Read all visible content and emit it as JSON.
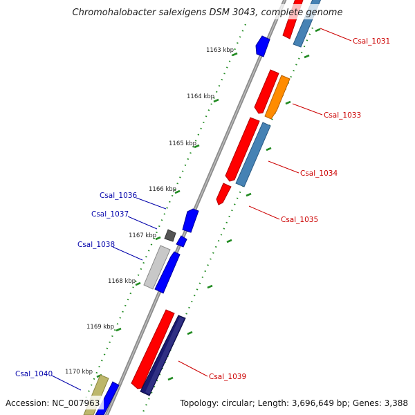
{
  "title": "Chromohalobacter salexigens DSM 3043, complete genome",
  "footer": {
    "accession": "Accession: NC_007963",
    "summary": "Topology: circular; Length: 3,696,649 bp; Genes: 3,388"
  },
  "kbp_labels": [
    "1163 kbp",
    "1164 kbp",
    "1165 kbp",
    "1166 kbp",
    "1167 kbp",
    "1168 kbp",
    "1169 kbp",
    "1170 kbp"
  ],
  "gene_labels": {
    "csal_1031": "Csal_1031",
    "csal_1033": "Csal_1033",
    "csal_1034": "Csal_1034",
    "csal_1035": "Csal_1035",
    "csal_1036": "Csal_1036",
    "csal_1037": "Csal_1037",
    "csal_1038": "Csal_1038",
    "csal_1039": "Csal_1039",
    "csal_1040": "Csal_1040"
  },
  "colors": {
    "forward_label": "#cc0000",
    "reverse_label": "#0000aa",
    "red_gene": "#ff0000",
    "blue_gene": "#0000ff",
    "steelblue_gene": "#4682b4",
    "orange_gene": "#ff8c00",
    "navy_gene": "#191970",
    "gray_gene": "#c8c8c8",
    "darkgray_gene": "#555555",
    "khaki_gene": "#bdb76b",
    "backbone": "#888888",
    "ticks": "#228b22"
  }
}
